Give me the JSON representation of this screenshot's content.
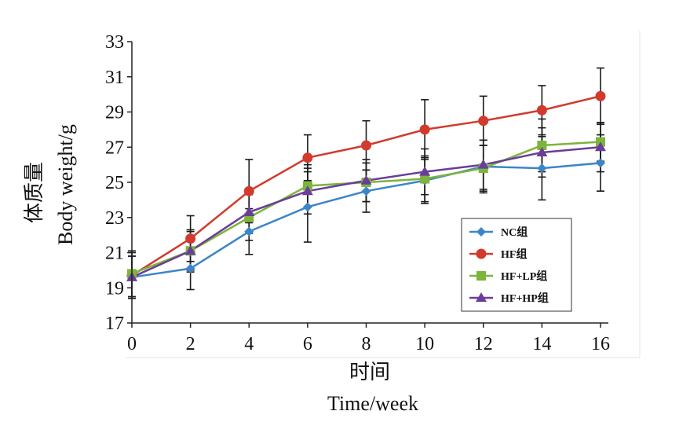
{
  "chart_data": {
    "type": "line",
    "xlabel_cn": "时间",
    "xlabel_en": "Time/week",
    "ylabel_cn": "体质量",
    "ylabel_en": "Body weight/g",
    "x": [
      0,
      2,
      4,
      6,
      8,
      10,
      12,
      14,
      16
    ],
    "xlim": [
      0,
      16
    ],
    "xticks": [
      "0",
      "2",
      "4",
      "6",
      "8",
      "10",
      "12",
      "14",
      "16"
    ],
    "ylim": [
      17,
      33
    ],
    "yticks": [
      "17",
      "19",
      "21",
      "23",
      "25",
      "27",
      "29",
      "31",
      "33"
    ],
    "grid": false,
    "legend_position": "lower-right",
    "series": [
      {
        "name": "NC组",
        "color": "#3c86c8",
        "marker": "diamond",
        "values": [
          19.6,
          20.1,
          22.2,
          23.6,
          24.5,
          25.1,
          25.9,
          25.8,
          26.1
        ],
        "errors": [
          1.2,
          1.2,
          1.3,
          2.0,
          1.2,
          1.3,
          1.5,
          1.8,
          1.6
        ]
      },
      {
        "name": "HF组",
        "color": "#d23a2e",
        "marker": "circle",
        "values": [
          19.7,
          21.8,
          24.5,
          26.4,
          27.1,
          28.0,
          28.5,
          29.1,
          29.9
        ],
        "errors": [
          1.3,
          1.3,
          1.8,
          1.3,
          1.4,
          1.7,
          1.4,
          1.4,
          1.6
        ]
      },
      {
        "name": "HF+LP组",
        "color": "#7db43b",
        "marker": "square",
        "values": [
          19.8,
          21.1,
          23.0,
          24.8,
          25.0,
          25.2,
          25.8,
          27.1,
          27.3
        ],
        "errors": [
          1.3,
          1.1,
          1.3,
          1.2,
          1.1,
          1.3,
          1.3,
          1.5,
          1.1
        ]
      },
      {
        "name": "HF+HP组",
        "color": "#6a3d9a",
        "marker": "triangle",
        "values": [
          19.6,
          21.1,
          23.3,
          24.5,
          25.1,
          25.6,
          26.0,
          26.7,
          27.0
        ],
        "errors": [
          1.2,
          1.2,
          1.2,
          1.3,
          1.2,
          1.3,
          1.4,
          1.4,
          1.4
        ]
      }
    ]
  }
}
